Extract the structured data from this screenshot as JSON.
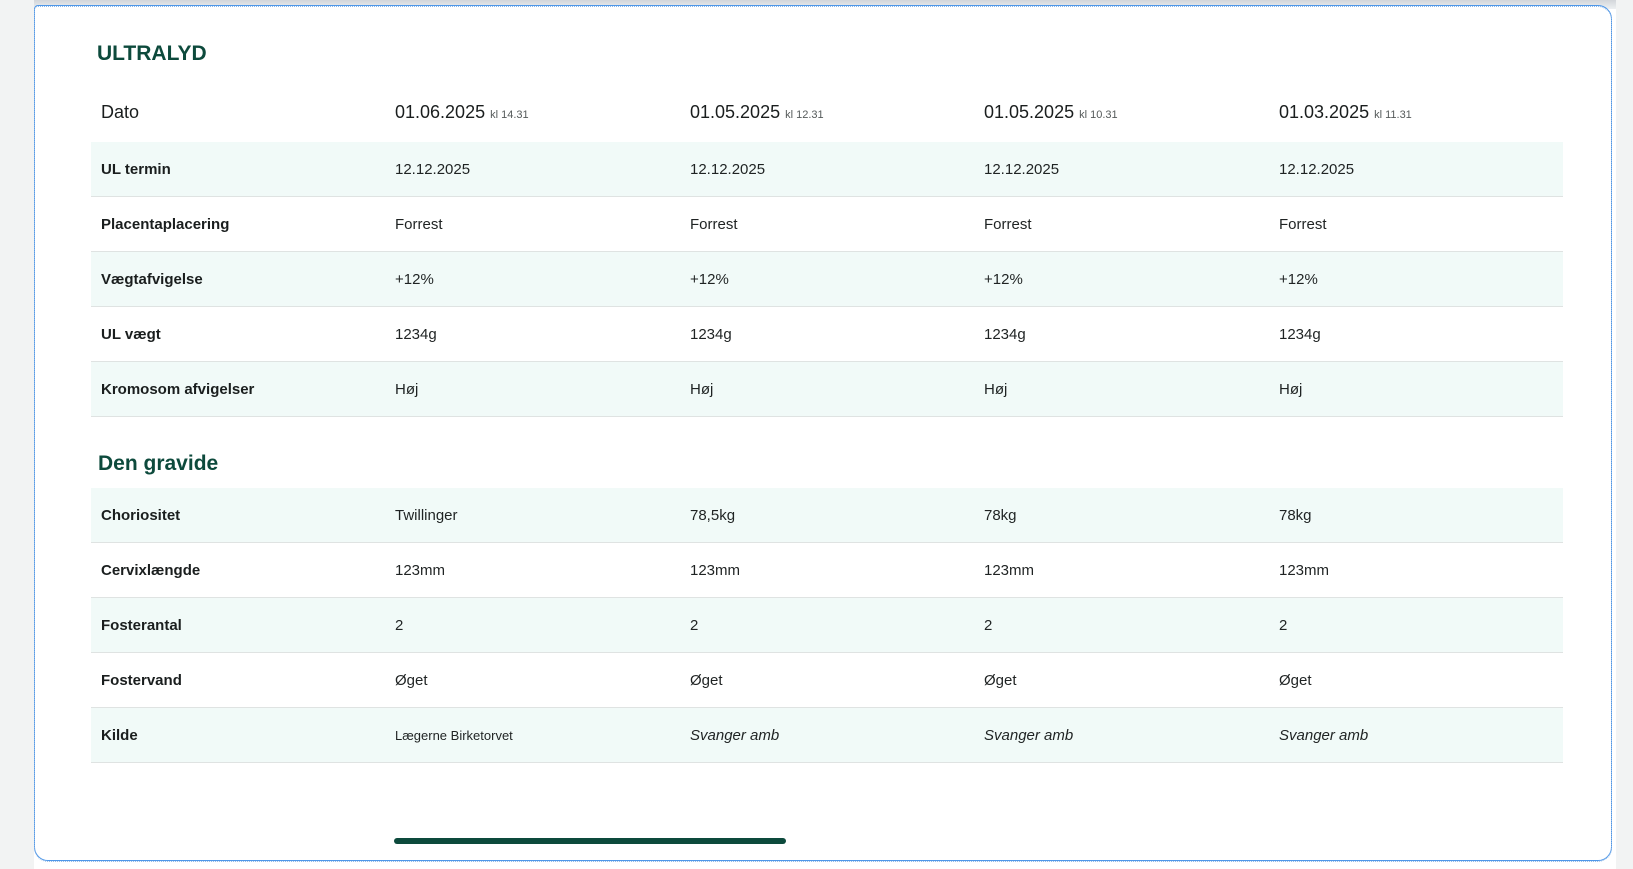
{
  "sections": {
    "ultralyd_title": "ULTRALYD",
    "gravide_title": "Den gravide"
  },
  "header": {
    "label": "Dato",
    "dates": [
      {
        "date": "01.06.2025",
        "time": "kl 14.31"
      },
      {
        "date": "01.05.2025",
        "time": "kl 12.31"
      },
      {
        "date": "01.05.2025",
        "time": "kl 10.31"
      },
      {
        "date": "01.03.2025",
        "time": "kl 11.31"
      }
    ]
  },
  "ultralyd_rows": [
    {
      "label": "UL termin",
      "values": [
        "12.12.2025",
        "12.12.2025",
        "12.12.2025",
        "12.12.2025"
      ]
    },
    {
      "label": "Placentaplacering",
      "values": [
        "Forrest",
        "Forrest",
        "Forrest",
        "Forrest"
      ]
    },
    {
      "label": "Vægtafvigelse",
      "values": [
        "+12%",
        "+12%",
        "+12%",
        "+12%"
      ]
    },
    {
      "label": "UL vægt",
      "values": [
        "1234g",
        "1234g",
        "1234g",
        "1234g"
      ]
    },
    {
      "label": "Kromosom afvigelser",
      "values": [
        "Høj",
        "Høj",
        "Høj",
        "Høj"
      ]
    }
  ],
  "gravide_rows": [
    {
      "label": "Choriositet",
      "values": [
        "Twillinger",
        "78,5kg",
        "78kg",
        "78kg"
      ]
    },
    {
      "label": "Cervixlængde",
      "values": [
        "123mm",
        "123mm",
        "123mm",
        "123mm"
      ]
    },
    {
      "label": "Fosterantal",
      "values": [
        "2",
        "2",
        "2",
        "2"
      ]
    },
    {
      "label": "Fostervand",
      "values": [
        "Øget",
        "Øget",
        "Øget",
        "Øget"
      ]
    },
    {
      "label": "Kilde",
      "values": [
        "Lægerne Birketorvet",
        "Svanger amb",
        "Svanger amb",
        "Svanger amb"
      ]
    }
  ],
  "scroll": {
    "horizontal_position": 0.0
  },
  "colors": {
    "heading": "#0d4a3c",
    "row_shade": "#f1faf8",
    "panel_border": "#4f97e8",
    "scrollbar": "#0d4a3c"
  }
}
